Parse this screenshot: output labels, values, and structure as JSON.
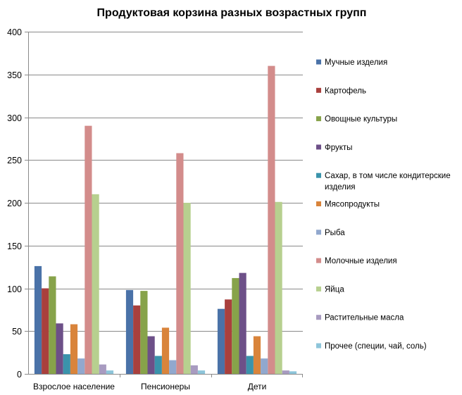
{
  "chart_data": {
    "type": "bar",
    "title": "Продуктовая корзина разных возрастных групп",
    "xlabel": "",
    "ylabel": "",
    "ylim": [
      0,
      400
    ],
    "yticks": [
      0,
      50,
      100,
      150,
      200,
      250,
      300,
      350,
      400
    ],
    "grid": true,
    "legend_position": "right",
    "categories": [
      "Взрослое население",
      "Пенсионеры",
      "Дети"
    ],
    "series": [
      {
        "name": "Мучные изделия",
        "color": "#4A72A8",
        "values": [
          126,
          98,
          76
        ]
      },
      {
        "name": "Картофель",
        "color": "#A9403D",
        "values": [
          100,
          80,
          87
        ]
      },
      {
        "name": "Овощные культуры",
        "color": "#87A34A",
        "values": [
          114,
          97,
          112
        ]
      },
      {
        "name": "Фрукты",
        "color": "#6D5088",
        "values": [
          59,
          44,
          118
        ]
      },
      {
        "name": "Сахар, в том числе кондитерские изделия",
        "color": "#3A93AB",
        "values": [
          23,
          21,
          21
        ]
      },
      {
        "name": "Мясопродукты",
        "color": "#D9843B",
        "values": [
          58,
          54,
          44
        ]
      },
      {
        "name": "Рыба",
        "color": "#91A8CE",
        "values": [
          18,
          16,
          18
        ]
      },
      {
        "name": "Молочные изделия",
        "color": "#D38C8B",
        "values": [
          290,
          258,
          360
        ]
      },
      {
        "name": "Яйца",
        "color": "#B7D08F",
        "values": [
          210,
          200,
          201
        ]
      },
      {
        "name": "Растительные масла",
        "color": "#A89BC0",
        "values": [
          11,
          10,
          4
        ]
      },
      {
        "name": "Прочее (специи, чай, соль)",
        "color": "#8DC5DA",
        "values": [
          4,
          4,
          3
        ]
      }
    ]
  }
}
